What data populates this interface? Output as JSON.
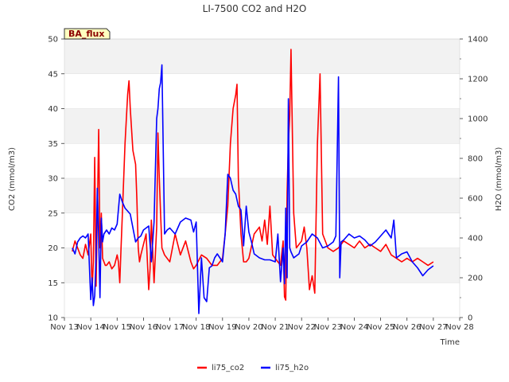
{
  "chart_data": {
    "type": "line",
    "title": "LI-7500 CO2 and H2O",
    "badge": "BA_flux",
    "xlabel": "Time",
    "ylabel_left": "CO2 (mmol/m3)",
    "ylabel_right": "H2O (mmol/m3)",
    "x_ticks": [
      "Nov 13",
      "Nov 14",
      "Nov 15",
      "Nov 16",
      "Nov 17",
      "Nov 18",
      "Nov 19",
      "Nov 20",
      "Nov 21",
      "Nov 22",
      "Nov 23",
      "Nov 24",
      "Nov 25",
      "Nov 26",
      "Nov 27",
      "Nov 28"
    ],
    "xlim": [
      13,
      28
    ],
    "ylim_left": [
      10,
      50
    ],
    "y_ticks_left": [
      10,
      15,
      20,
      25,
      30,
      35,
      40,
      45,
      50
    ],
    "ylim_right": [
      0,
      1400
    ],
    "y_ticks_right": [
      0,
      200,
      400,
      600,
      800,
      1000,
      1200,
      1400
    ],
    "grid": true,
    "legend_position": "bottom-center",
    "series": [
      {
        "name": "li75_co2",
        "axis": "left",
        "color": "#ff0000",
        "x": [
          13.3,
          13.4,
          13.5,
          13.6,
          13.7,
          13.8,
          13.9,
          14.0,
          14.05,
          14.1,
          14.15,
          14.2,
          14.25,
          14.3,
          14.35,
          14.4,
          14.45,
          14.5,
          14.55,
          14.6,
          14.7,
          14.8,
          14.9,
          15.0,
          15.05,
          15.1,
          15.15,
          15.2,
          15.3,
          15.4,
          15.45,
          15.5,
          15.6,
          15.7,
          15.75,
          15.8,
          15.85,
          15.9,
          16.0,
          16.1,
          16.2,
          16.25,
          16.3,
          16.4,
          16.5,
          16.55,
          16.6,
          16.65,
          16.7,
          16.8,
          17.0,
          17.2,
          17.4,
          17.6,
          17.8,
          17.9,
          18.0,
          18.2,
          18.4,
          18.6,
          18.8,
          19.0,
          19.1,
          19.2,
          19.3,
          19.4,
          19.5,
          19.55,
          19.6,
          19.7,
          19.8,
          19.9,
          20.0,
          20.2,
          20.4,
          20.5,
          20.6,
          20.7,
          20.8,
          20.9,
          21.0,
          21.1,
          21.2,
          21.3,
          21.35,
          21.4,
          21.45,
          21.5,
          21.55,
          21.6,
          21.7,
          21.8,
          22.0,
          22.1,
          22.2,
          22.3,
          22.4,
          22.5,
          22.6,
          22.7,
          22.8,
          23.0,
          23.2,
          23.4,
          23.6,
          23.8,
          24.0,
          24.2,
          24.4,
          24.6,
          24.8,
          25.0,
          25.2,
          25.4,
          25.6,
          25.8,
          26.0,
          26.2,
          26.4,
          26.6,
          26.8,
          27.0
        ],
        "values": [
          19.5,
          21.0,
          20.0,
          19.0,
          18.5,
          20.5,
          19.0,
          22.0,
          14.0,
          18.0,
          33.0,
          14.5,
          25.0,
          37.0,
          20.0,
          25.0,
          18.5,
          18.0,
          17.5,
          17.5,
          18.0,
          17.0,
          17.5,
          19.0,
          18.0,
          15.0,
          20.0,
          25.0,
          35.0,
          42.0,
          44.0,
          40.0,
          34.0,
          32.0,
          27.0,
          20.0,
          18.0,
          19.0,
          20.5,
          22.0,
          14.0,
          17.0,
          24.0,
          15.0,
          23.0,
          36.5,
          30.0,
          25.0,
          20.0,
          19.0,
          18.0,
          22.0,
          19.0,
          21.0,
          18.0,
          17.0,
          17.5,
          19.0,
          18.5,
          17.5,
          17.5,
          18.5,
          22.0,
          26.0,
          35.0,
          40.0,
          42.0,
          43.5,
          30.0,
          22.0,
          18.0,
          18.0,
          18.5,
          22.0,
          23.0,
          21.0,
          24.0,
          20.5,
          26.0,
          19.0,
          18.5,
          18.0,
          17.5,
          21.0,
          13.0,
          12.5,
          28.0,
          35.0,
          39.0,
          48.5,
          25.0,
          20.0,
          21.0,
          23.0,
          20.0,
          14.0,
          16.0,
          13.5,
          35.0,
          45.0,
          22.0,
          20.0,
          19.5,
          20.0,
          21.0,
          20.5,
          20.0,
          21.0,
          20.0,
          20.5,
          20.0,
          19.5,
          20.5,
          19.0,
          18.5,
          18.0,
          18.5,
          18.0,
          18.5,
          18.0,
          17.5,
          18.0
        ]
      },
      {
        "name": "li75_h2o",
        "axis": "right",
        "color": "#0000ff",
        "x": [
          13.3,
          13.4,
          13.5,
          13.6,
          13.7,
          13.8,
          13.9,
          14.0,
          14.05,
          14.1,
          14.15,
          14.2,
          14.25,
          14.3,
          14.35,
          14.4,
          14.45,
          14.5,
          14.6,
          14.7,
          14.8,
          14.9,
          15.0,
          15.1,
          15.2,
          15.3,
          15.5,
          15.7,
          15.8,
          15.9,
          16.0,
          16.2,
          16.3,
          16.4,
          16.5,
          16.55,
          16.6,
          16.65,
          16.7,
          16.8,
          16.9,
          17.0,
          17.2,
          17.4,
          17.6,
          17.8,
          17.9,
          18.0,
          18.1,
          18.2,
          18.3,
          18.4,
          18.5,
          18.6,
          18.7,
          18.8,
          19.0,
          19.1,
          19.2,
          19.3,
          19.4,
          19.5,
          19.6,
          19.7,
          19.8,
          19.9,
          20.0,
          20.1,
          20.2,
          20.4,
          20.6,
          20.8,
          21.0,
          21.1,
          21.2,
          21.3,
          21.35,
          21.4,
          21.45,
          21.5,
          21.55,
          21.6,
          21.7,
          21.8,
          21.9,
          22.0,
          22.2,
          22.4,
          22.6,
          22.8,
          23.0,
          23.2,
          23.3,
          23.4,
          23.45,
          23.5,
          23.6,
          23.8,
          24.0,
          24.2,
          24.4,
          24.6,
          24.8,
          25.0,
          25.2,
          25.4,
          25.5,
          25.6,
          25.8,
          26.0,
          26.2,
          26.4,
          26.6,
          26.8,
          27.0
        ],
        "values": [
          350,
          320,
          380,
          400,
          410,
          400,
          420,
          90,
          200,
          60,
          110,
          300,
          650,
          400,
          100,
          500,
          380,
          420,
          440,
          420,
          450,
          440,
          470,
          620,
          580,
          550,
          520,
          380,
          400,
          410,
          440,
          460,
          280,
          480,
          1000,
          1050,
          1150,
          1180,
          1270,
          420,
          440,
          450,
          420,
          480,
          500,
          490,
          430,
          480,
          20,
          300,
          100,
          80,
          250,
          260,
          300,
          320,
          280,
          420,
          720,
          700,
          640,
          620,
          560,
          540,
          360,
          560,
          430,
          380,
          320,
          300,
          290,
          290,
          280,
          420,
          180,
          350,
          170,
          550,
          200,
          1100,
          350,
          330,
          300,
          310,
          320,
          360,
          380,
          420,
          400,
          350,
          360,
          380,
          410,
          1210,
          200,
          380,
          390,
          420,
          400,
          410,
          390,
          360,
          380,
          410,
          440,
          400,
          490,
          300,
          320,
          330,
          280,
          250,
          210,
          240,
          260
        ]
      }
    ]
  }
}
